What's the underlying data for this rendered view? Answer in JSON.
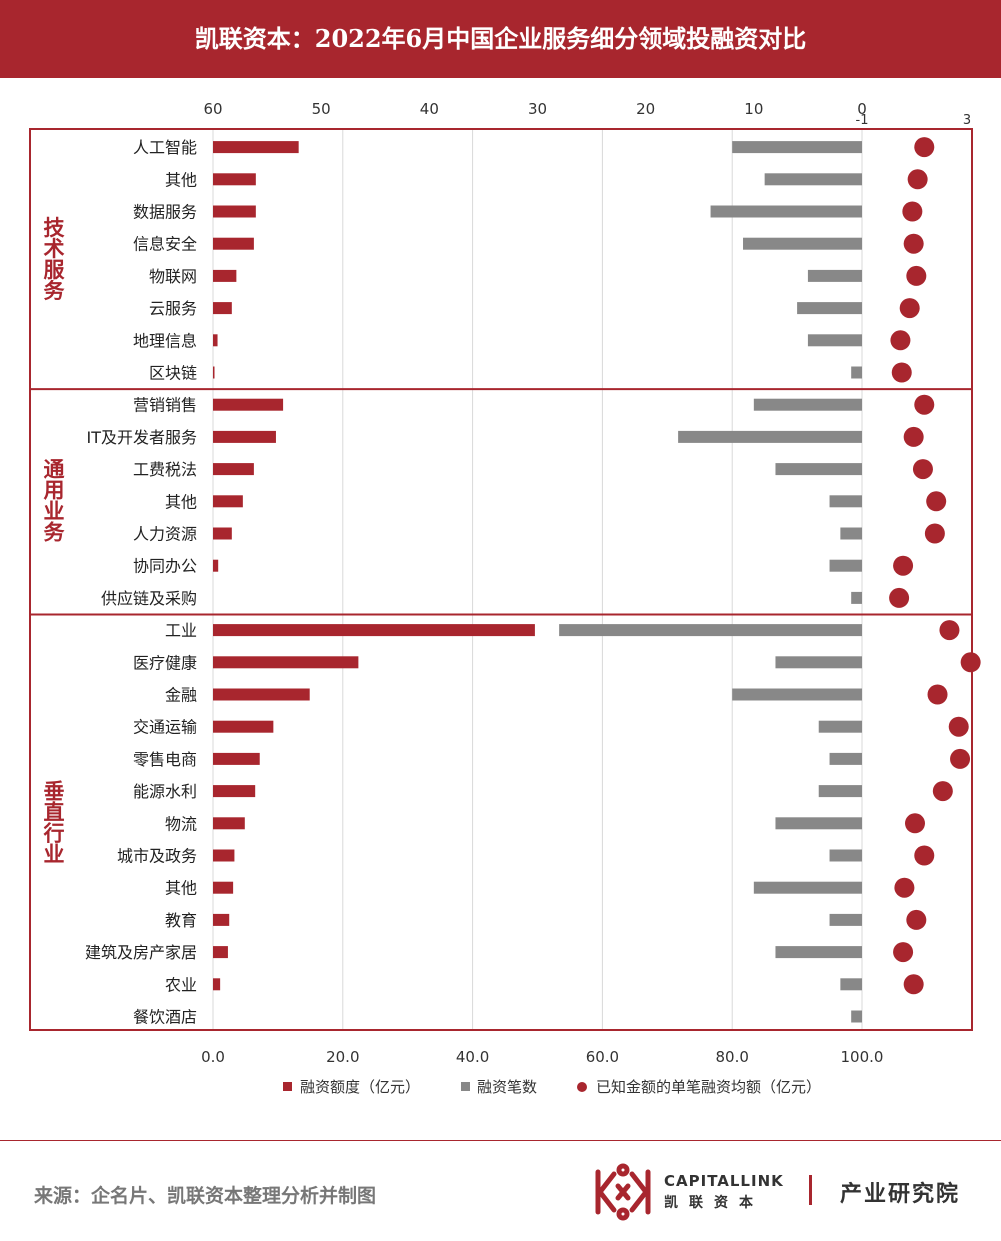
{
  "header": {
    "title": "凯联资本：2022年6月中国企业服务细分领域投融资对比"
  },
  "colors": {
    "brand_red": "#a8262e",
    "bar_gray": "#888888",
    "grid": "#d9d9d9"
  },
  "chart_data": {
    "type": "bar",
    "groups": [
      {
        "name": "技术服务",
        "categories": [
          "人工智能",
          "其他",
          "数据服务",
          "信息安全",
          "物联网",
          "云服务",
          "地理信息",
          "区块链"
        ]
      },
      {
        "name": "通用业务",
        "categories": [
          "营销销售",
          "IT及开发者服务",
          "工费税法",
          "其他",
          "人力资源",
          "协同办公",
          "供应链及采购"
        ]
      },
      {
        "name": "垂直行业",
        "categories": [
          "工业",
          "医疗健康",
          "金融",
          "交通运输",
          "零售电商",
          "能源水利",
          "物流",
          "城市及政务",
          "其他",
          "教育",
          "建筑及房产家居",
          "农业",
          "餐饮酒店"
        ]
      }
    ],
    "series": [
      {
        "name": "融资额度（亿元）",
        "type": "bar",
        "axis": "bottom",
        "color": "#a8262e",
        "values": [
          13.2,
          6.6,
          6.6,
          6.3,
          3.6,
          2.9,
          0.7,
          0.2,
          10.8,
          9.7,
          6.3,
          4.6,
          2.9,
          0.8,
          0.0,
          49.6,
          22.4,
          14.9,
          9.3,
          7.2,
          6.5,
          4.9,
          3.3,
          3.1,
          2.5,
          2.3,
          1.1,
          0.0
        ]
      },
      {
        "name": "融资笔数",
        "type": "bar",
        "axis": "top",
        "color": "#888888",
        "values": [
          12,
          9,
          14,
          11,
          5,
          6,
          5,
          1,
          10,
          17,
          8,
          3,
          2,
          3,
          1,
          28,
          8,
          12,
          4,
          3,
          4,
          8,
          3,
          10,
          3,
          8,
          2,
          1
        ]
      },
      {
        "name": "已知金额的单笔融资均额（亿元）",
        "type": "scatter",
        "axis": "right",
        "color": "#a8262e",
        "values": [
          1.35,
          1.1,
          0.9,
          0.95,
          1.05,
          0.8,
          0.45,
          0.5,
          1.35,
          0.95,
          1.3,
          1.8,
          1.75,
          0.55,
          0.4,
          2.3,
          3.1,
          1.85,
          2.65,
          2.7,
          2.05,
          1.0,
          1.35,
          0.6,
          1.05,
          0.55,
          0.95,
          null
        ]
      }
    ],
    "axes": {
      "bottom": {
        "range": [
          0,
          100
        ],
        "ticks": [
          "0.0",
          "20.0",
          "40.0",
          "60.0",
          "80.0",
          "100.0"
        ]
      },
      "top": {
        "range": [
          60,
          0
        ],
        "ticks": [
          "60",
          "50",
          "40",
          "30",
          "20",
          "10",
          "0"
        ]
      },
      "right": {
        "range": [
          -1,
          3
        ],
        "ticks": [
          "-1",
          "3"
        ]
      }
    },
    "legend_position": "bottom",
    "grid": true
  },
  "footer": {
    "source": "来源：企名片、凯联资本整理分析并制图",
    "brand_en": "CAPITALLINK",
    "brand_cn": "凯联资本",
    "brand_dept": "产业研究院"
  }
}
